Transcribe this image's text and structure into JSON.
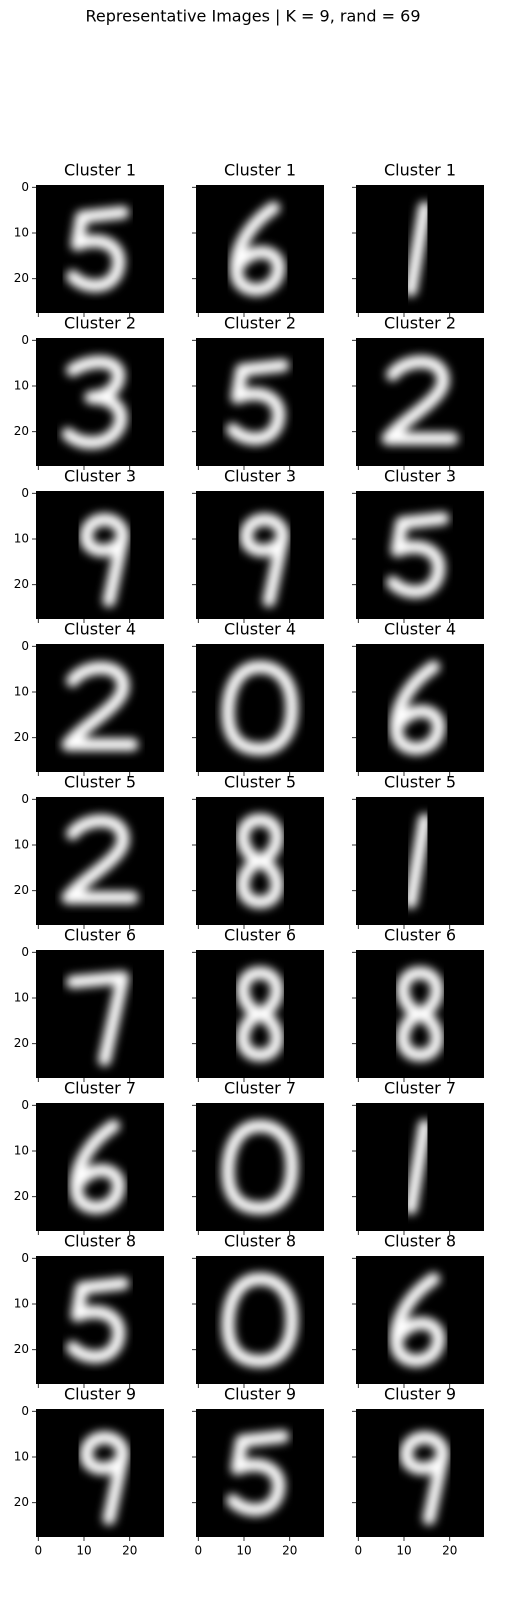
{
  "chart_data": {
    "type": "image_grid",
    "title": "Representative Images | K = 9, rand = 69",
    "panel_titles": [
      "Cluster 1",
      "Cluster 1",
      "Cluster 1",
      "Cluster 2",
      "Cluster 2",
      "Cluster 2",
      "Cluster 3",
      "Cluster 3",
      "Cluster 3",
      "Cluster 4",
      "Cluster 4",
      "Cluster 4",
      "Cluster 5",
      "Cluster 5",
      "Cluster 5",
      "Cluster 6",
      "Cluster 6",
      "Cluster 6",
      "Cluster 7",
      "Cluster 7",
      "Cluster 7",
      "Cluster 8",
      "Cluster 8",
      "Cluster 8",
      "Cluster 9",
      "Cluster 9",
      "Cluster 9"
    ],
    "columns": 3,
    "colormap": "gray",
    "xlim": [
      -0.5,
      27.5
    ],
    "ylim": [
      27.5,
      -0.5
    ],
    "xticks": [
      0,
      10,
      20
    ],
    "yticks": [
      0,
      10,
      20
    ]
  }
}
